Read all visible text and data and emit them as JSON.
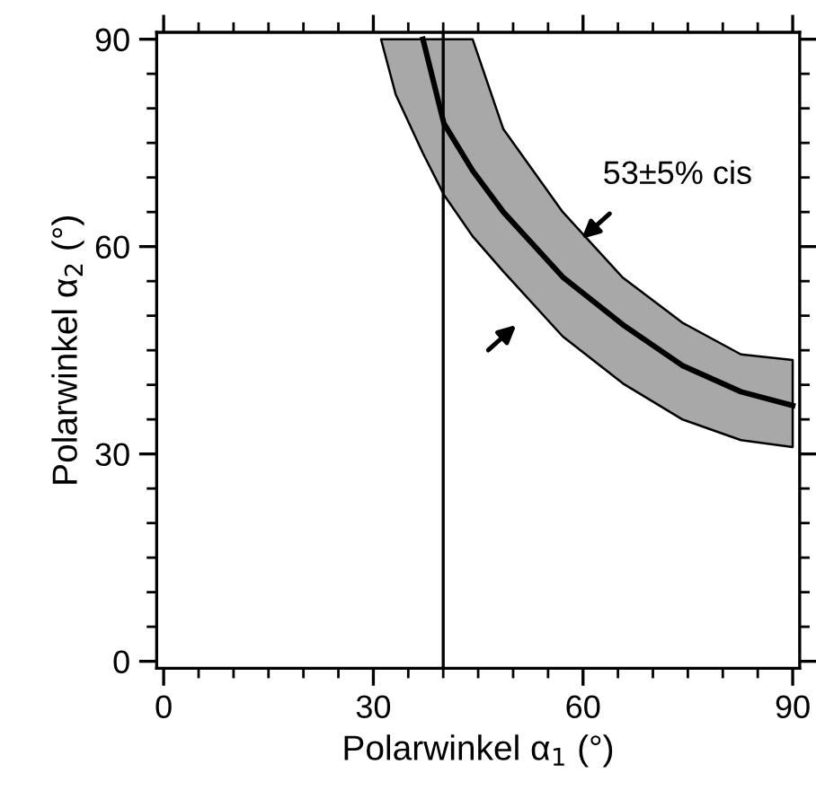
{
  "chart_data": {
    "type": "line",
    "xlabel": "Polarwinkel α$_{1}$ (°)",
    "ylabel": "Polarwinkel α$_{2}$ (°)",
    "xlim": [
      -1,
      91
    ],
    "ylim": [
      -1,
      91
    ],
    "xticks": [
      0,
      30,
      60,
      90
    ],
    "yticks": [
      0,
      30,
      60,
      90
    ],
    "grid": false,
    "marker": "none",
    "line_style": "solid",
    "series": [
      {
        "color": "#000000",
        "x": [
          31.1,
          33.2,
          37.1,
          40.1,
          44.2,
          48.6,
          57.1,
          65.7,
          74.2,
          82.6,
          90
        ],
        "values": [
          null,
          null,
          90,
          77.8,
          71,
          65,
          55.6,
          48.7,
          42.8,
          39,
          37
        ],
        "lower": [
          90,
          82,
          73.5,
          67.5,
          61.5,
          56.4,
          47,
          40.2,
          35,
          32,
          31
        ],
        "upper": [
          90,
          90,
          90,
          90,
          90,
          77,
          65,
          55.5,
          49,
          44.4,
          43.6
        ]
      }
    ],
    "ref_lines": [
      {
        "axis": "x",
        "value": 40,
        "color": "#000000"
      }
    ],
    "annotations": [
      "53±5% cis"
    ]
  }
}
